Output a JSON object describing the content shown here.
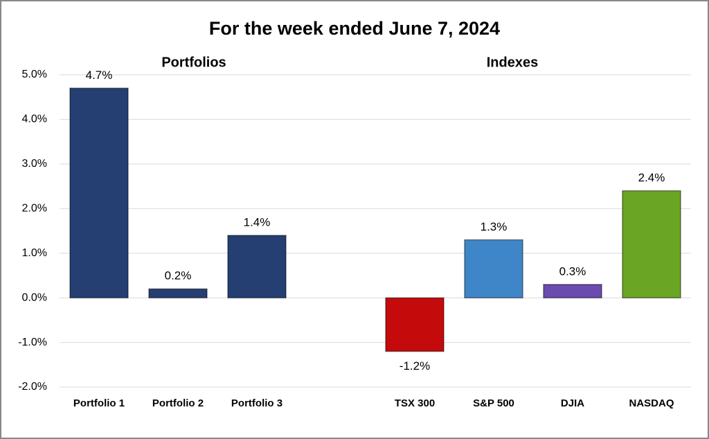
{
  "chart_data": {
    "type": "bar",
    "title": "For the week ended June 7, 2024",
    "annotations": [
      "Portfolios",
      "Indexes"
    ],
    "categories": [
      "Portfolio 1",
      "Portfolio 2",
      "Portfolio 3",
      null,
      "TSX 300",
      "S&P 500",
      "DJIA",
      "NASDAQ"
    ],
    "values": [
      4.7,
      0.2,
      1.4,
      null,
      -1.2,
      1.3,
      0.3,
      2.4
    ],
    "value_labels": [
      "4.7%",
      "0.2%",
      "1.4%",
      null,
      "-1.2%",
      "1.3%",
      "0.3%",
      "2.4%"
    ],
    "colors": [
      "#253f73",
      "#253f73",
      "#253f73",
      null,
      "#c40a0a",
      "#3f86c8",
      "#6a4bb0",
      "#6aa524"
    ],
    "ylim": [
      -2,
      5
    ],
    "yticks": [
      {
        "value": -2,
        "label": "-2.0%"
      },
      {
        "value": -1,
        "label": "-1.0%"
      },
      {
        "value": 0,
        "label": "0.0%"
      },
      {
        "value": 1,
        "label": "1.0%"
      },
      {
        "value": 2,
        "label": "2.0%"
      },
      {
        "value": 3,
        "label": "3.0%"
      },
      {
        "value": 4,
        "label": "4.0%"
      },
      {
        "value": 5,
        "label": "5.0%"
      }
    ],
    "grid": true
  }
}
